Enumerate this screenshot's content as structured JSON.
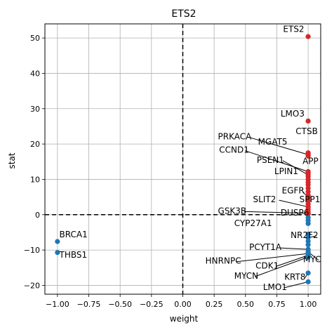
{
  "chart_data": {
    "type": "scatter",
    "title": "ETS2",
    "xlabel": "weight",
    "ylabel": "stat",
    "xlim": [
      -1.1,
      1.1
    ],
    "ylim": [
      -22.5,
      54
    ],
    "xticks": [
      -1.0,
      -0.75,
      -0.5,
      -0.25,
      0.0,
      0.25,
      0.5,
      0.75,
      1.0
    ],
    "xtick_labels": [
      "−1.00",
      "−0.75",
      "−0.50",
      "−0.25",
      "0.00",
      "0.25",
      "0.50",
      "0.75",
      "1.00"
    ],
    "yticks": [
      -20,
      -10,
      0,
      10,
      20,
      30,
      40,
      50
    ],
    "ytick_labels": [
      "−20",
      "−10",
      "0",
      "10",
      "20",
      "30",
      "40",
      "50"
    ],
    "grid": true,
    "reference_lines": {
      "x": 0,
      "y": 0,
      "style": "dashed"
    },
    "colors": {
      "positive": "#d62728",
      "negative": "#1f77b4",
      "grid": "#b0b0b0"
    },
    "points": [
      {
        "label": "ETS2",
        "x": 1.0,
        "y": 50.4
      },
      {
        "label": "LMO3",
        "x": 1.0,
        "y": 26.5
      },
      {
        "label": "CTSB",
        "x": 1.0,
        "y": 17.5
      },
      {
        "label": "PRKACA",
        "x": 1.0,
        "y": 17.0
      },
      {
        "label": "MGAT5",
        "x": 1.0,
        "y": 16.6
      },
      {
        "label": "CCND1",
        "x": 1.0,
        "y": 12.2
      },
      {
        "label": "APP",
        "x": 1.0,
        "y": 11.9
      },
      {
        "label": "PSEN1",
        "x": 1.0,
        "y": 11.3
      },
      {
        "label": "LPIN1",
        "x": 1.0,
        "y": 10.8
      },
      {
        "label": "",
        "x": 1.0,
        "y": 10.0
      },
      {
        "label": "",
        "x": 1.0,
        "y": 9.2
      },
      {
        "label": "",
        "x": 1.0,
        "y": 8.5
      },
      {
        "label": "",
        "x": 1.0,
        "y": 7.5
      },
      {
        "label": "",
        "x": 1.0,
        "y": 6.5
      },
      {
        "label": "",
        "x": 1.0,
        "y": 5.5
      },
      {
        "label": "EGFR",
        "x": 1.0,
        "y": 4.8
      },
      {
        "label": "",
        "x": 1.0,
        "y": 4.0
      },
      {
        "label": "",
        "x": 1.0,
        "y": 3.0
      },
      {
        "label": "SLIT2",
        "x": 1.0,
        "y": 2.2
      },
      {
        "label": "",
        "x": 1.0,
        "y": 1.5
      },
      {
        "label": "SPP1",
        "x": 1.0,
        "y": 0.8
      },
      {
        "label": "GSK3B",
        "x": 1.0,
        "y": 0.4
      },
      {
        "label": "DUSP6",
        "x": 1.0,
        "y": 0.2
      },
      {
        "label": "",
        "x": 1.0,
        "y": -0.8
      },
      {
        "label": "",
        "x": 1.0,
        "y": -1.6
      },
      {
        "label": "",
        "x": 1.0,
        "y": -2.5
      },
      {
        "label": "CYP27A1",
        "x": 1.0,
        "y": -5.5
      },
      {
        "label": "NR2F2",
        "x": 1.0,
        "y": -6.5
      },
      {
        "label": "",
        "x": 1.0,
        "y": -7.5
      },
      {
        "label": "",
        "x": 1.0,
        "y": -8.5
      },
      {
        "label": "PCYT1A",
        "x": 1.0,
        "y": -9.8
      },
      {
        "label": "MYC",
        "x": 1.0,
        "y": -10.5
      },
      {
        "label": "HNRNPC",
        "x": 1.0,
        "y": -11.0
      },
      {
        "label": "CDK1",
        "x": 1.0,
        "y": -11.5
      },
      {
        "label": "MYCN",
        "x": 1.0,
        "y": -12.0
      },
      {
        "label": "KRT8",
        "x": 1.0,
        "y": -16.5
      },
      {
        "label": "LMO1",
        "x": 1.0,
        "y": -19.0
      },
      {
        "label": "BRCA1",
        "x": -1.0,
        "y": -7.6
      },
      {
        "label": "THBS1",
        "x": -1.0,
        "y": -10.7
      }
    ],
    "annotations": [
      {
        "text": "ETS2",
        "point": "ETS2",
        "tx": 0.8,
        "ty": 51.7,
        "leader": false
      },
      {
        "text": "LMO3",
        "point": "LMO3",
        "tx": 0.78,
        "ty": 27.8,
        "leader": false
      },
      {
        "text": "CTSB",
        "point": "CTSB",
        "tx": 0.9,
        "ty": 22.8,
        "leader": false
      },
      {
        "text": "PRKACA",
        "point": "PRKACA",
        "tx": 0.28,
        "ty": 21.3,
        "leader": true
      },
      {
        "text": "MGAT5",
        "point": "MGAT5",
        "tx": 0.6,
        "ty": 19.8,
        "leader": false
      },
      {
        "text": "CCND1",
        "point": "CCND1",
        "tx": 0.29,
        "ty": 17.5,
        "leader": true
      },
      {
        "text": "APP",
        "point": "APP",
        "tx": 0.955,
        "ty": 14.4,
        "leader": false
      },
      {
        "text": "PSEN1",
        "point": "PSEN1",
        "tx": 0.59,
        "ty": 14.7,
        "leader": true
      },
      {
        "text": "LPIN1",
        "point": "LPIN1",
        "tx": 0.73,
        "ty": 11.5,
        "leader": false
      },
      {
        "text": "EGFR",
        "point": "EGFR",
        "tx": 0.79,
        "ty": 6.0,
        "leader": true
      },
      {
        "text": "SLIT2",
        "point": "SLIT2",
        "tx": 0.56,
        "ty": 3.5,
        "leader": true
      },
      {
        "text": "SPP1",
        "point": "SPP1",
        "tx": 0.93,
        "ty": 3.5,
        "leader": false
      },
      {
        "text": "GSK3B",
        "point": "GSK3B",
        "tx": 0.28,
        "ty": 0.3,
        "leader": true
      },
      {
        "text": "DUSP6",
        "point": "DUSP6",
        "tx": 0.78,
        "ty": -0.2,
        "leader": false
      },
      {
        "text": "CYP27A1",
        "point": "CYP27A1",
        "tx": 0.41,
        "ty": -3.2,
        "leader": false
      },
      {
        "text": "NR2F2",
        "point": "NR2F2",
        "tx": 0.86,
        "ty": -6.6,
        "leader": true
      },
      {
        "text": "PCYT1A",
        "point": "PCYT1A",
        "tx": 0.53,
        "ty": -10.0,
        "leader": true
      },
      {
        "text": "MYC",
        "point": "MYC",
        "tx": 0.96,
        "ty": -13.5,
        "leader": true
      },
      {
        "text": "HNRNPC",
        "point": "HNRNPC",
        "tx": 0.18,
        "ty": -13.9,
        "leader": true
      },
      {
        "text": "CDK1",
        "point": "CDK1",
        "tx": 0.58,
        "ty": -15.2,
        "leader": true
      },
      {
        "text": "MYCN",
        "point": "MYCN",
        "tx": 0.41,
        "ty": -18.1,
        "leader": true
      },
      {
        "text": "KRT8",
        "point": "KRT8",
        "tx": 0.81,
        "ty": -18.4,
        "leader": true
      },
      {
        "text": "LMO1",
        "point": "LMO1",
        "tx": 0.64,
        "ty": -21.3,
        "leader": true
      },
      {
        "text": "BRCA1",
        "point": "BRCA1",
        "tx": -0.985,
        "ty": -6.4,
        "leader": false
      },
      {
        "text": "THBS1",
        "point": "THBS1",
        "tx": -0.985,
        "ty": -12.2,
        "leader": false
      }
    ]
  }
}
